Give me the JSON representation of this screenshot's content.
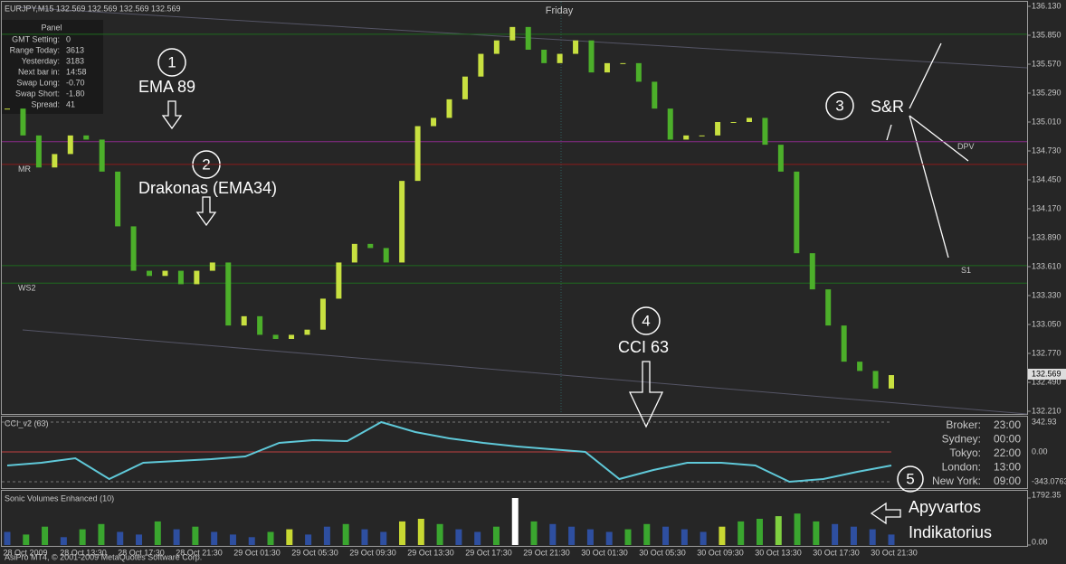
{
  "header": {
    "symbol": "EURJPY,M15  132.569 132.569 132.569 132.569",
    "day": "Friday",
    "copyright": "AsiPro MT4, © 2001-2009 MetaQuotes Software Corp."
  },
  "panel": {
    "title": "Panel",
    "rows": [
      [
        "GMT Setting:",
        "0"
      ],
      [
        "Range Today:",
        "3613"
      ],
      [
        "Yesterday:",
        "3183"
      ],
      [
        "Next bar in:",
        "14:58"
      ],
      [
        "Swap Long:",
        "-0.70"
      ],
      [
        "Swap Short:",
        "-1.80"
      ],
      [
        "Spread:",
        "41"
      ]
    ]
  },
  "annotations": [
    {
      "num": "1",
      "text": "EMA 89"
    },
    {
      "num": "2",
      "text": "Drakonas (EMA34)"
    },
    {
      "num": "3",
      "text": "S&R"
    },
    {
      "num": "4",
      "text": "CCI 63"
    },
    {
      "num": "5",
      "text": "Apyvartos",
      "text2": "Indikatorius"
    }
  ],
  "sessions": [
    [
      "Broker:",
      "23:00"
    ],
    [
      "Sydney:",
      "00:00"
    ],
    [
      "Tokyo:",
      "22:00"
    ],
    [
      "London:",
      "13:00"
    ],
    [
      "New York:",
      "09:00"
    ]
  ],
  "chart_data": [
    {
      "type": "candlestick",
      "name": "EURJPY,M15",
      "current_price": {
        "value": 132.569,
        "label": "132.569"
      },
      "closes": [
        135.14,
        134.88,
        134.57,
        134.7,
        134.88,
        134.84,
        134.53,
        134.0,
        133.57,
        133.52,
        133.57,
        133.44,
        133.57,
        133.65,
        133.04,
        133.13,
        132.95,
        132.91,
        132.95,
        133.0,
        133.3,
        133.65,
        133.83,
        133.79,
        133.65,
        134.44,
        134.97,
        135.05,
        135.23,
        135.45,
        135.67,
        135.8,
        135.93,
        135.71,
        135.58,
        135.67,
        135.8,
        135.49,
        135.58,
        135.58,
        135.4,
        135.14,
        134.84,
        134.88,
        134.88,
        135.01,
        135.01,
        135.05,
        134.79,
        134.53,
        133.74,
        133.39,
        133.04,
        132.69,
        132.6,
        132.43,
        132.56
      ],
      "up_color": "#c8e040",
      "down_color": "#4caf2a",
      "ylim": [
        132.21,
        136.13
      ],
      "yticks": [
        {
          "value": 136.13,
          "label": "136.130"
        },
        {
          "value": 135.85,
          "label": "135.850"
        },
        {
          "value": 135.57,
          "label": "135.570"
        },
        {
          "value": 135.29,
          "label": "135.290"
        },
        {
          "value": 135.01,
          "label": "135.010"
        },
        {
          "value": 134.73,
          "label": "134.730"
        },
        {
          "value": 134.45,
          "label": "134.450"
        },
        {
          "value": 134.17,
          "label": "134.170"
        },
        {
          "value": 133.89,
          "label": "133.890"
        },
        {
          "value": 133.61,
          "label": "133.610"
        },
        {
          "value": 133.33,
          "label": "133.330"
        },
        {
          "value": 133.05,
          "label": "133.050"
        },
        {
          "value": 132.77,
          "label": "132.770"
        },
        {
          "value": 132.49,
          "label": "132.490"
        },
        {
          "value": 132.21,
          "label": "132.210"
        }
      ],
      "levels": [
        {
          "value": 135.86,
          "color": "#1f6a1f"
        },
        {
          "value": 134.82,
          "color": "#8a2a8a",
          "label": "DPV"
        },
        {
          "value": 134.6,
          "color": "#8b1a1a",
          "label": "MR"
        },
        {
          "value": 133.62,
          "color": "#1f6a1f",
          "label": "S1"
        },
        {
          "value": 133.45,
          "color": "#1f6a1f",
          "label": "WS2"
        }
      ]
    },
    {
      "type": "line",
      "title": "CCI_v2 (63)",
      "color": "#5fc8d8",
      "values": [
        -156,
        -125,
        -73,
        -312,
        -125,
        -104,
        -83,
        -52,
        104,
        135,
        125,
        343,
        229,
        156,
        104,
        62,
        31,
        0,
        -312,
        -208,
        -125,
        -125,
        -156,
        -343,
        -312,
        -229,
        -156
      ],
      "ylim": [
        -343.0763,
        342.93
      ],
      "yticks": [
        342.93,
        {
          "value": 0,
          "label": "0.00"
        },
        -343.0763
      ]
    },
    {
      "type": "bar",
      "title": "Sonic Volumes Enhanced (10)",
      "values": [
        500,
        400,
        700,
        300,
        600,
        800,
        500,
        400,
        900,
        600,
        700,
        500,
        400,
        300,
        500,
        600,
        400,
        700,
        800,
        600,
        500,
        900,
        1000,
        800,
        600,
        500,
        700,
        1792,
        900,
        800,
        700,
        600,
        500,
        600,
        800,
        700,
        600,
        500,
        700,
        900,
        1000,
        1100,
        1200,
        900,
        800,
        700,
        600,
        400
      ],
      "colors": [
        "#2e4fa0",
        "#3aa62f",
        "#3aa62f",
        "#2e4fa0",
        "#3aa62f",
        "#3aa62f",
        "#2e4fa0",
        "#2e4fa0",
        "#3aa62f",
        "#2e4fa0",
        "#3aa62f",
        "#2e4fa0",
        "#2e4fa0",
        "#2e4fa0",
        "#3aa62f",
        "#c8d832",
        "#2e4fa0",
        "#2e4fa0",
        "#3aa62f",
        "#2e4fa0",
        "#2e4fa0",
        "#c8d832",
        "#c8d832",
        "#3aa62f",
        "#2e4fa0",
        "#2e4fa0",
        "#3aa62f",
        "#ffffff",
        "#3aa62f",
        "#2e4fa0",
        "#2e4fa0",
        "#2e4fa0",
        "#2e4fa0",
        "#3aa62f",
        "#3aa62f",
        "#2e4fa0",
        "#2e4fa0",
        "#2e4fa0",
        "#c8d832",
        "#3aa62f",
        "#3aa62f",
        "#7fd040",
        "#3aa62f",
        "#3aa62f",
        "#2e4fa0",
        "#2e4fa0",
        "#2e4fa0",
        "#2e4fa0"
      ],
      "ylim": [
        0,
        1792.35
      ],
      "yticks": [
        1792.35,
        {
          "value": 0,
          "label": "0.00"
        }
      ],
      "x_labels": [
        "28 Oct 2009",
        "28 Oct 13:30",
        "28 Oct 17:30",
        "28 Oct 21:30",
        "29 Oct 01:30",
        "29 Oct 05:30",
        "29 Oct 09:30",
        "29 Oct 13:30",
        "29 Oct 17:30",
        "29 Oct 21:30",
        "30 Oct 01:30",
        "30 Oct 05:30",
        "30 Oct 09:30",
        "30 Oct 13:30",
        "30 Oct 17:30",
        "30 Oct 21:30"
      ]
    }
  ]
}
